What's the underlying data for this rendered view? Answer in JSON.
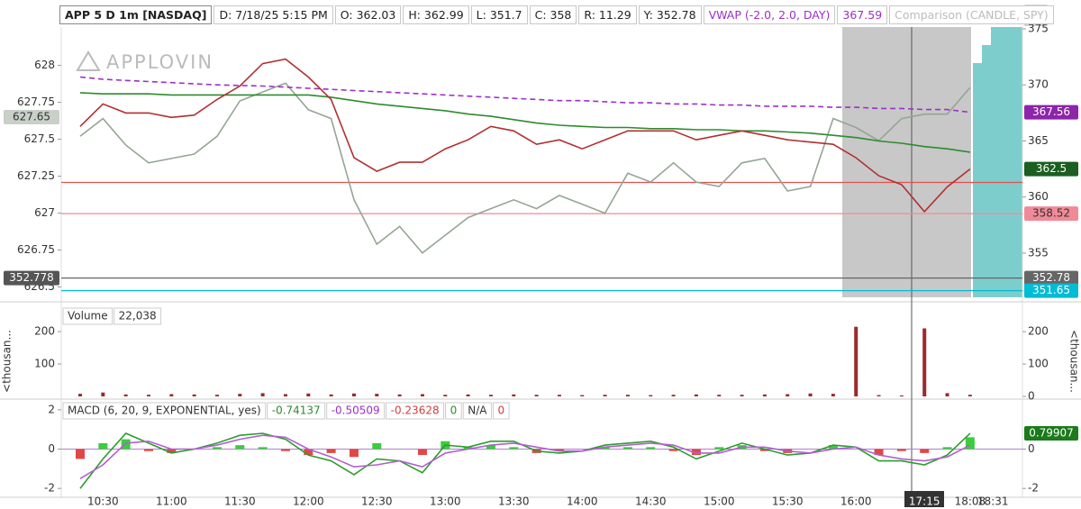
{
  "toolbar": {
    "symbol": "APP 5 D 1m [NASDAQ]",
    "date": "D: 7/18/25 5:15 PM",
    "open": "O: 362.03",
    "high": "H: 362.99",
    "low": "L: 351.7",
    "close": "C: 358",
    "range": "R: 11.29",
    "prev": "Y: 352.78",
    "vwap": "VWAP (-2.0, 2.0, DAY)",
    "vwap_value": "367.59",
    "comparison": "Comparison (CANDLE, SPY)"
  },
  "watermark": "APPLOVIN",
  "chart_data": [
    {
      "type": "line",
      "ylim": [
        626.43,
        628.26
      ],
      "yticks": [
        628,
        627.75,
        627.5,
        627.25,
        627,
        626.75,
        626.5
      ],
      "y2lim": [
        351.06,
        375.16
      ],
      "y2ticks": [
        375,
        370,
        365,
        360,
        355
      ],
      "series": [
        {
          "color": "#95a595",
          "axis": "y",
          "values": [
            627.52,
            627.64,
            627.46,
            627.34,
            627.37,
            627.4,
            627.52,
            627.76,
            627.82,
            627.88,
            627.7,
            627.64,
            627.09,
            626.79,
            626.91,
            626.73,
            626.85,
            626.97,
            627.03,
            627.09,
            627.03,
            627.12,
            627.06,
            627.0,
            627.27,
            627.21,
            627.34,
            627.21,
            627.18,
            627.34,
            627.37,
            627.15,
            627.18,
            627.64,
            627.58,
            627.49,
            627.64,
            627.67,
            627.67,
            627.85,
            null
          ]
        },
        {
          "color": "#2e8b2e",
          "axis": "y2",
          "values": [
            369.3,
            369.2,
            369.2,
            369.2,
            369.1,
            369.1,
            369.1,
            369.1,
            369.1,
            369.1,
            369.1,
            368.9,
            368.6,
            368.3,
            368.1,
            367.9,
            367.7,
            367.4,
            367.2,
            366.9,
            366.6,
            366.4,
            366.3,
            366.2,
            366.2,
            366.1,
            366.1,
            366,
            366,
            365.9,
            365.9,
            365.8,
            365.7,
            365.5,
            365.3,
            365,
            364.8,
            364.5,
            364.3,
            364,
            null
          ]
        },
        {
          "color": "#9b30c8",
          "axis": "y2",
          "dash": true,
          "values": [
            370.7,
            370.5,
            370.4,
            370.3,
            370.2,
            370.1,
            370,
            369.95,
            369.9,
            369.8,
            369.7,
            369.6,
            369.5,
            369.4,
            369.3,
            369.2,
            369.1,
            369,
            368.9,
            368.8,
            368.7,
            368.6,
            368.6,
            368.5,
            368.4,
            368.4,
            368.3,
            368.3,
            368.2,
            368.2,
            368.1,
            368.1,
            368.1,
            368,
            368,
            367.9,
            367.9,
            367.8,
            367.8,
            367.56,
            null
          ]
        },
        {
          "color": "#b03030",
          "axis": "y2",
          "values": [
            366.3,
            368.3,
            367.5,
            367.5,
            367.1,
            367.3,
            368.7,
            369.9,
            371.9,
            372.3,
            370.7,
            368.7,
            363.5,
            362.3,
            363.1,
            363.1,
            364.3,
            365.1,
            366.3,
            365.9,
            364.7,
            365.1,
            364.3,
            365.1,
            365.9,
            365.9,
            365.9,
            365.1,
            365.5,
            365.9,
            365.5,
            365.1,
            364.9,
            364.7,
            363.5,
            361.9,
            361.1,
            358.7,
            360.9,
            362.5,
            null
          ]
        }
      ],
      "levels": [
        {
          "value": 361.3,
          "color": "#e05050",
          "axis": "y2",
          "line": true,
          "badge": false
        },
        {
          "value": 358.52,
          "color": "#f08a96",
          "axis": "y2",
          "line": true
        },
        {
          "value": 352.78,
          "color": "#666666",
          "axis": "y2",
          "line": true
        },
        {
          "value": 351.65,
          "color": "#00bcd4",
          "axis": "y2",
          "line": true
        },
        {
          "value": 367.56,
          "color": "#8e24aa",
          "axis": "y2"
        },
        {
          "value": 362.5,
          "color": "#1b5e20",
          "axis": "y2"
        },
        {
          "value": 352.778,
          "color": "#555555",
          "axis": "y2",
          "side": "left"
        },
        {
          "value": 627.65,
          "color": "#c8d0c8",
          "axis": "y",
          "side": "left"
        }
      ]
    },
    {
      "type": "bar",
      "title": "Volume",
      "readouts": [
        {
          "text": "22,038"
        }
      ],
      "ylabel": "<thousan...",
      "y2label": "<thousan...",
      "ylim": [
        0,
        217
      ],
      "yticks": [
        100,
        200
      ],
      "y2lim": [
        0,
        217
      ],
      "y2ticks": [
        0,
        100,
        200
      ],
      "color": "#9b2a2a",
      "values": [
        8,
        12,
        6,
        5,
        7,
        6,
        5,
        8,
        10,
        7,
        9,
        6,
        9,
        8,
        6,
        7,
        5,
        6,
        5,
        6,
        5,
        5,
        4,
        5,
        5,
        4,
        5,
        6,
        5,
        5,
        6,
        7,
        9,
        8,
        215,
        4,
        3,
        210,
        10,
        5,
        null
      ]
    },
    {
      "type": "macd",
      "title": "MACD (6, 20, 9, EXPONENTIAL, yes)",
      "readouts": [
        {
          "text": "-0.74137",
          "color": "#2e8b2e"
        },
        {
          "text": "-0.50509",
          "color": "#9b30c8"
        },
        {
          "text": "-0.23628",
          "color": "#d04040"
        },
        {
          "text": "0",
          "color": "#2e8b2e"
        },
        {
          "text": "N/A",
          "color": "#333333"
        },
        {
          "text": "0",
          "color": "#d04040"
        }
      ],
      "ylim": [
        -2.45,
        2.45
      ],
      "yticks": [
        2,
        0,
        -2
      ],
      "y2lim": [
        -2.45,
        2.45
      ],
      "y2ticks": [
        0,
        -2
      ],
      "categories": [
        null,
        "10:30",
        null,
        null,
        "11:00",
        null,
        null,
        "11:30",
        null,
        null,
        "12:00",
        null,
        null,
        "12:30",
        null,
        null,
        "13:00",
        null,
        null,
        "13:30",
        null,
        null,
        "14:00",
        null,
        null,
        "14:30",
        null,
        null,
        "15:00",
        null,
        null,
        "15:30",
        null,
        null,
        "16:00",
        null,
        null,
        "17:15",
        null,
        "18:08",
        "18:31"
      ],
      "series": [
        {
          "color": "#2e9b2e",
          "values": [
            -2,
            -0.5,
            0.8,
            0.3,
            -0.2,
            0,
            0.3,
            0.7,
            0.8,
            0.5,
            -0.3,
            -0.6,
            -1.3,
            -0.5,
            -0.6,
            -1.2,
            0.2,
            0.1,
            0.4,
            0.4,
            -0.1,
            -0.2,
            -0.1,
            0.2,
            0.3,
            0.4,
            0.1,
            -0.5,
            -0.1,
            0.3,
            0,
            -0.3,
            -0.2,
            0.2,
            0.1,
            -0.6,
            -0.6,
            -0.8,
            -0.3,
            0.79907,
            null
          ]
        },
        {
          "color": "#b060d0",
          "values": [
            -1.5,
            -0.8,
            0.3,
            0.4,
            0,
            0,
            0.2,
            0.5,
            0.7,
            0.6,
            0,
            -0.4,
            -0.9,
            -0.8,
            -0.6,
            -0.9,
            -0.2,
            0,
            0.2,
            0.3,
            0.1,
            -0.1,
            -0.1,
            0.1,
            0.2,
            0.3,
            0.2,
            -0.2,
            -0.2,
            0.1,
            0.1,
            -0.1,
            -0.2,
            0,
            0.1,
            -0.3,
            -0.5,
            -0.6,
            -0.4,
            0.2,
            null
          ]
        }
      ],
      "bars": {
        "up_color": "#3ccc3c",
        "down_color": "#e04848",
        "values": [
          -0.5,
          0.3,
          0.5,
          -0.1,
          -0.2,
          0,
          0.1,
          0.2,
          0.1,
          -0.1,
          -0.3,
          -0.2,
          -0.4,
          0.3,
          0,
          -0.3,
          0.4,
          0.1,
          0.2,
          0.1,
          -0.2,
          -0.1,
          0,
          0.1,
          0.1,
          0.1,
          -0.1,
          -0.3,
          0.1,
          0.2,
          -0.1,
          -0.2,
          0,
          0.2,
          0,
          -0.3,
          -0.1,
          -0.2,
          0.1,
          0.6,
          null
        ]
      },
      "levels": [
        {
          "value": 0.79907,
          "color": "#1b7a1b",
          "axis": "y2"
        }
      ]
    }
  ]
}
